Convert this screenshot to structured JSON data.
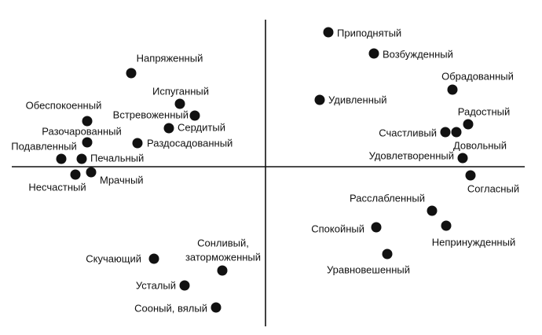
{
  "nodes": [
    {
      "label": "Приподнятый"
    },
    {
      "label": "Возбужденный"
    },
    {
      "label": "Обрадованный"
    },
    {
      "label": "Удивленный"
    },
    {
      "label": "Радостный"
    },
    {
      "label": "Счастливый"
    },
    {
      "label": "Довольный"
    },
    {
      "label": "Удовлетворенный"
    },
    {
      "label": "Согласный"
    },
    {
      "label": "Расслабленный"
    },
    {
      "label": "Непринужденный"
    },
    {
      "label": "Спокойный"
    },
    {
      "label": "Уравновешенный"
    },
    {
      "label": "Напряженный"
    },
    {
      "label": "Испуганный"
    },
    {
      "label": "Встревоженный"
    },
    {
      "label": "Обеспокоенный"
    },
    {
      "label": "Сердитый"
    },
    {
      "label": "Разочарованный"
    },
    {
      "label": "Раздосадованный"
    },
    {
      "label": "Подавленный"
    },
    {
      "label": "Печальный"
    },
    {
      "label": "Несчастный"
    },
    {
      "label": "Мрачный"
    },
    {
      "label": "Скучающий"
    },
    {
      "lines": [
        "Сонливый,",
        "заторможенный"
      ]
    },
    {
      "label": "Усталый"
    },
    {
      "label": "Сооный, вялый"
    }
  ]
}
